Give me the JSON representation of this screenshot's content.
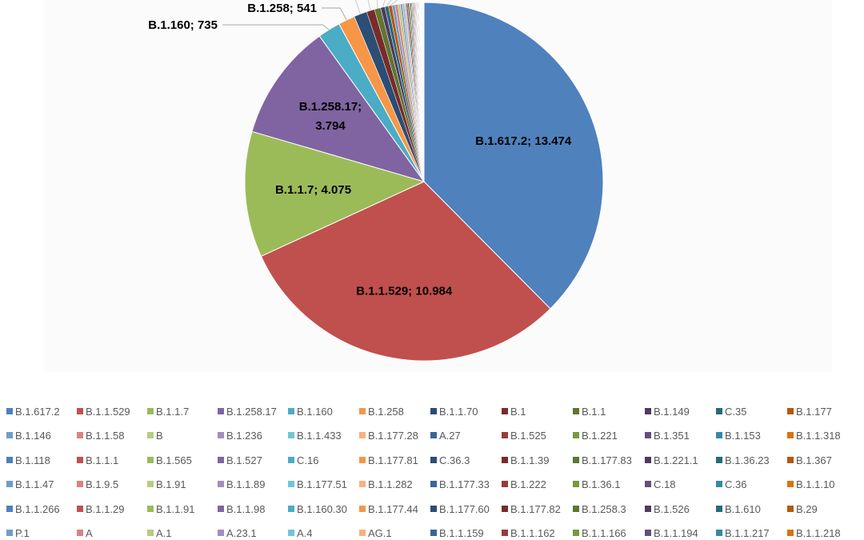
{
  "chart_data": {
    "type": "pie",
    "title": "",
    "labeled_slices": [
      {
        "label": "B.1.617.2",
        "value": 13474,
        "display": "B.1.617.2; 13.474"
      },
      {
        "label": "B.1.1.529",
        "value": 10984,
        "display": "B.1.1.529; 10.984"
      },
      {
        "label": "B.1.1.7",
        "value": 4075,
        "display": "B.1.1.7; 4.075"
      },
      {
        "label": "B.1.258.17",
        "value": 3794,
        "display": "B.1.258.17; 3.794"
      },
      {
        "label": "B.1.160",
        "value": 735,
        "display": "B.1.160; 735"
      },
      {
        "label": "B.1.258",
        "value": 541,
        "display": "B.1.258; 541"
      }
    ],
    "estimated_small_slices": [
      {
        "label": "B.1.1.70",
        "value": 420
      },
      {
        "label": "B.1",
        "value": 260
      },
      {
        "label": "B.1.1",
        "value": 200
      },
      {
        "label": "B.1.149",
        "value": 140
      },
      {
        "label": "C.35",
        "value": 120
      },
      {
        "label": "B.1.177",
        "value": 110
      },
      {
        "label": "B.1.146",
        "value": 100
      },
      {
        "label": "B.1.1.58",
        "value": 90
      },
      {
        "label": "B",
        "value": 80
      },
      {
        "label": "B.1.236",
        "value": 70
      },
      {
        "label": "B.1.1.433",
        "value": 60
      },
      {
        "label": "B.1.177.28",
        "value": 55
      },
      {
        "label": "A.27",
        "value": 50
      },
      {
        "label": "B.1.525",
        "value": 45
      },
      {
        "label": "B.1.221",
        "value": 40
      },
      {
        "label": "B.1.351",
        "value": 35
      },
      {
        "label": "B.1.153",
        "value": 30
      },
      {
        "label": "B.1.1.318",
        "value": 28
      },
      {
        "label": "B.1.118",
        "value": 26
      },
      {
        "label": "B.1.1.1",
        "value": 24
      },
      {
        "label": "B.1.565",
        "value": 22
      },
      {
        "label": "B.1.527",
        "value": 20
      },
      {
        "label": "C.16",
        "value": 18
      },
      {
        "label": "B.1.177.81",
        "value": 16
      },
      {
        "label": "C.36.3",
        "value": 15
      },
      {
        "label": "B.1.1.39",
        "value": 14
      },
      {
        "label": "B.1.177.83",
        "value": 13
      },
      {
        "label": "B.1.221.1",
        "value": 12
      },
      {
        "label": "B.1.36.23",
        "value": 11
      },
      {
        "label": "B.1.367",
        "value": 10
      },
      {
        "label": "B.1.1.47",
        "value": 10
      },
      {
        "label": "B.1.9.5",
        "value": 9
      },
      {
        "label": "B.1.91",
        "value": 9
      },
      {
        "label": "B.1.1.89",
        "value": 8
      },
      {
        "label": "B.1.177.51",
        "value": 8
      },
      {
        "label": "B.1.1.282",
        "value": 7
      },
      {
        "label": "B.1.177.33",
        "value": 7
      },
      {
        "label": "B.1.222",
        "value": 7
      },
      {
        "label": "B.1.36.1",
        "value": 6
      },
      {
        "label": "C.18",
        "value": 6
      },
      {
        "label": "C.36",
        "value": 6
      },
      {
        "label": "B.1.1.10",
        "value": 5
      },
      {
        "label": "B.1.1.266",
        "value": 5
      },
      {
        "label": "B.1.1.29",
        "value": 5
      },
      {
        "label": "B.1.1.91",
        "value": 4
      },
      {
        "label": "B.1.1.98",
        "value": 4
      },
      {
        "label": "B.1.160.30",
        "value": 4
      },
      {
        "label": "B.1.177.44",
        "value": 4
      },
      {
        "label": "B.1.177.60",
        "value": 3
      },
      {
        "label": "B.1.177.82",
        "value": 3
      },
      {
        "label": "B.1.258.3",
        "value": 3
      },
      {
        "label": "B.1.526",
        "value": 3
      },
      {
        "label": "B.1.610",
        "value": 3
      },
      {
        "label": "B.29",
        "value": 2
      },
      {
        "label": "P.1",
        "value": 2
      },
      {
        "label": "A",
        "value": 2
      },
      {
        "label": "A.1",
        "value": 2
      },
      {
        "label": "A.23.1",
        "value": 2
      },
      {
        "label": "A.4",
        "value": 1
      },
      {
        "label": "AG.1",
        "value": 1
      },
      {
        "label": "B.1.1.159",
        "value": 1
      },
      {
        "label": "B.1.1.162",
        "value": 1
      },
      {
        "label": "B.1.1.166",
        "value": 1
      },
      {
        "label": "B.1.1.194",
        "value": 1
      },
      {
        "label": "B.1.1.217",
        "value": 1
      },
      {
        "label": "B.1.1.218",
        "value": 1
      }
    ],
    "palette": [
      "#4f81bd",
      "#c0504d",
      "#9bbb59",
      "#8064a2",
      "#4bacc6",
      "#f79646",
      "#2c4d75",
      "#772c2a",
      "#5f7530",
      "#4d3b62",
      "#276a7c",
      "#b65708",
      "#729aca",
      "#d9827f",
      "#b4cc83",
      "#a28fbc",
      "#73c3d8",
      "#f9b07d",
      "#3a6599",
      "#9b3a37",
      "#7b983f",
      "#65507f",
      "#338aa2",
      "#dd710c"
    ],
    "legend_position": "bottom"
  }
}
